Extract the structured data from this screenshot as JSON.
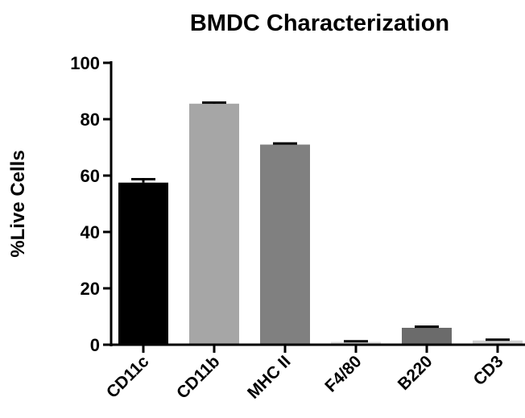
{
  "chart_data": {
    "type": "bar",
    "title": "BMDC Characterization",
    "xlabel": "",
    "ylabel": "%Live Cells",
    "ylim": [
      0,
      100
    ],
    "yticks": [
      0,
      20,
      40,
      60,
      80,
      100
    ],
    "categories": [
      "CD11c",
      "CD11b",
      "MHC II",
      "F4/80",
      "B220",
      "CD3"
    ],
    "values": [
      57.5,
      85.5,
      71.0,
      1.0,
      6.0,
      1.5
    ],
    "errors": [
      1.2,
      0.4,
      0.4,
      0.2,
      0.4,
      0.3
    ],
    "colors": [
      "#000000",
      "#a6a6a6",
      "#808080",
      "#dcdcdc",
      "#6b6b6b",
      "#d0d0d0"
    ],
    "grid": false,
    "legend": "none"
  }
}
